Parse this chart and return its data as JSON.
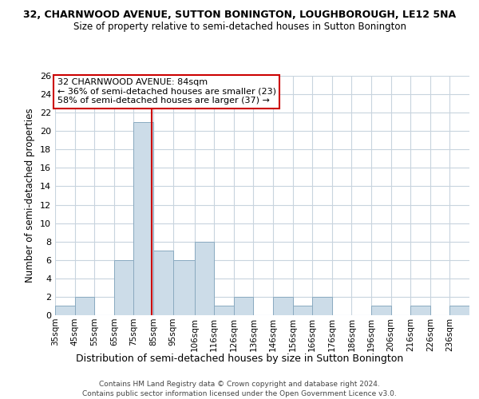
{
  "title": "32, CHARNWOOD AVENUE, SUTTON BONINGTON, LOUGHBOROUGH, LE12 5NA",
  "subtitle": "Size of property relative to semi-detached houses in Sutton Bonington",
  "xlabel": "Distribution of semi-detached houses by size in Sutton Bonington",
  "ylabel": "Number of semi-detached properties",
  "bin_labels": [
    "35sqm",
    "45sqm",
    "55sqm",
    "65sqm",
    "75sqm",
    "85sqm",
    "95sqm",
    "106sqm",
    "116sqm",
    "126sqm",
    "136sqm",
    "146sqm",
    "156sqm",
    "166sqm",
    "176sqm",
    "186sqm",
    "196sqm",
    "206sqm",
    "216sqm",
    "226sqm",
    "236sqm"
  ],
  "bin_edges": [
    35,
    45,
    55,
    65,
    75,
    85,
    95,
    106,
    116,
    126,
    136,
    146,
    156,
    166,
    176,
    186,
    196,
    206,
    216,
    226,
    236,
    246
  ],
  "counts": [
    1,
    2,
    0,
    6,
    21,
    7,
    6,
    8,
    1,
    2,
    0,
    2,
    1,
    2,
    0,
    0,
    1,
    0,
    1,
    0,
    1
  ],
  "bar_color": "#ccdce8",
  "bar_edge_color": "#8aaac0",
  "property_line_x": 84,
  "property_line_color": "#cc0000",
  "annotation_title": "32 CHARNWOOD AVENUE: 84sqm",
  "annotation_line1": "← 36% of semi-detached houses are smaller (23)",
  "annotation_line2": "58% of semi-detached houses are larger (37) →",
  "annotation_box_color": "#ffffff",
  "annotation_box_edge": "#cc0000",
  "ylim": [
    0,
    26
  ],
  "yticks": [
    0,
    2,
    4,
    6,
    8,
    10,
    12,
    14,
    16,
    18,
    20,
    22,
    24,
    26
  ],
  "footer1": "Contains HM Land Registry data © Crown copyright and database right 2024.",
  "footer2": "Contains public sector information licensed under the Open Government Licence v3.0.",
  "bg_color": "#ffffff",
  "grid_color": "#c8d4de"
}
